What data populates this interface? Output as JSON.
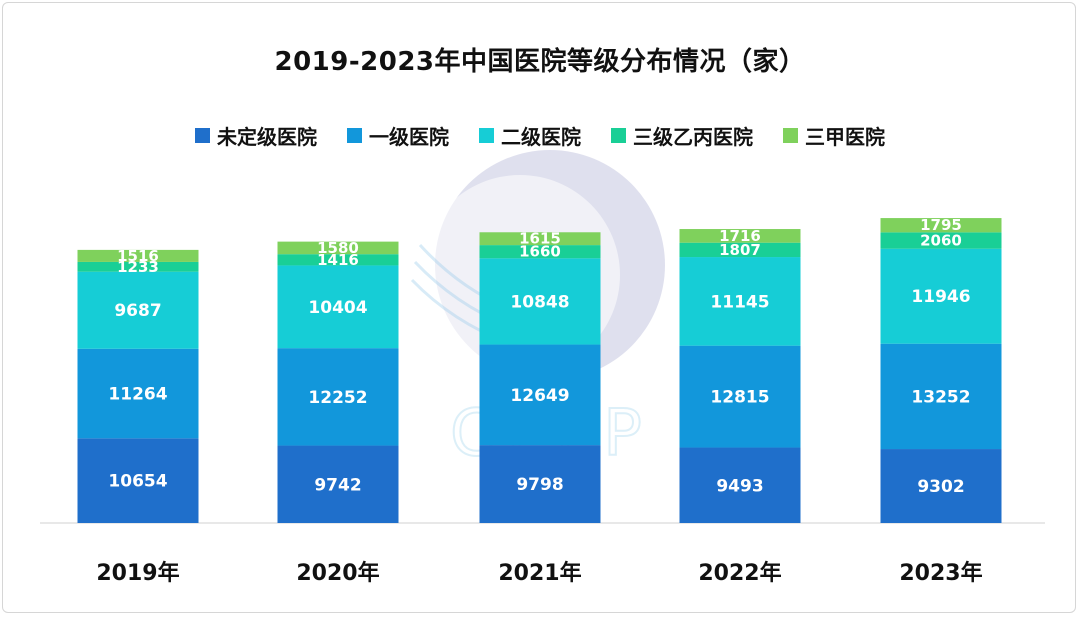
{
  "chart_data": {
    "type": "bar",
    "stacked": true,
    "title": "2019-2023年中国医院等级分布情况（家）",
    "categories": [
      "2019年",
      "2020年",
      "2021年",
      "2022年",
      "2023年"
    ],
    "series": [
      {
        "name": "未定级医院",
        "color": "#1f6fcb",
        "values": [
          10654,
          9742,
          9798,
          9493,
          9302
        ]
      },
      {
        "name": "一级医院",
        "color": "#1297db",
        "values": [
          11264,
          12252,
          12649,
          12815,
          13252
        ]
      },
      {
        "name": "二级医院",
        "color": "#16cdd6",
        "values": [
          9687,
          10404,
          10848,
          11145,
          11946
        ]
      },
      {
        "name": "三级乙丙医院",
        "color": "#19cf96",
        "values": [
          1233,
          1416,
          1660,
          1807,
          2060
        ]
      },
      {
        "name": "三甲医院",
        "color": "#7fd15c",
        "values": [
          1516,
          1580,
          1615,
          1716,
          1795
        ]
      }
    ],
    "ylim": [
      0,
      40000
    ],
    "legend_position": "top",
    "grid": false
  },
  "watermark": {
    "text": "CFLP"
  }
}
